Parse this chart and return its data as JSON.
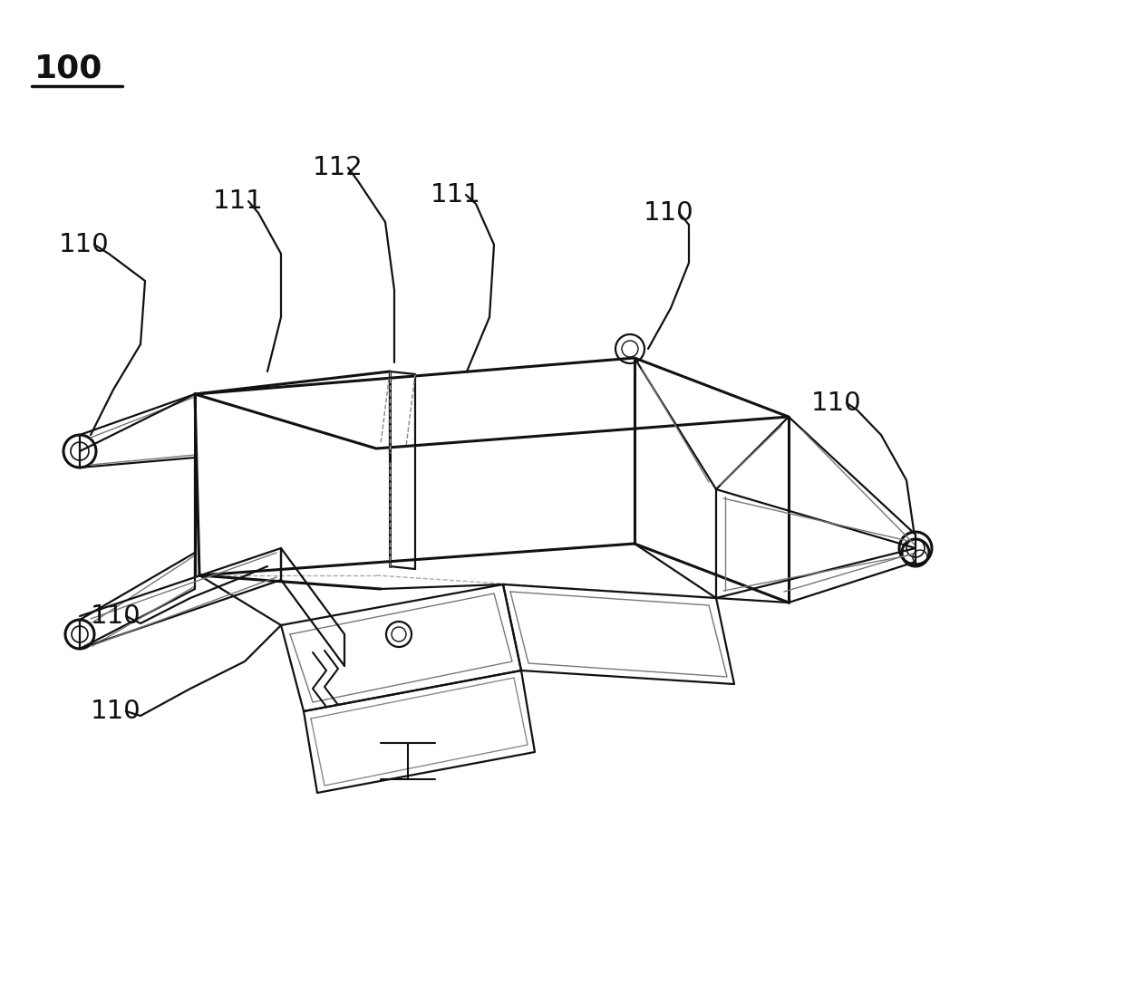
{
  "title_label": "100",
  "title_fontsize": 26,
  "bg_color": "#ffffff",
  "line_color": "#111111",
  "label_color": "#111111",
  "label_fontsize": 21,
  "lw_main": 1.6,
  "lw_thick": 2.2,
  "lw_inner": 1.0
}
